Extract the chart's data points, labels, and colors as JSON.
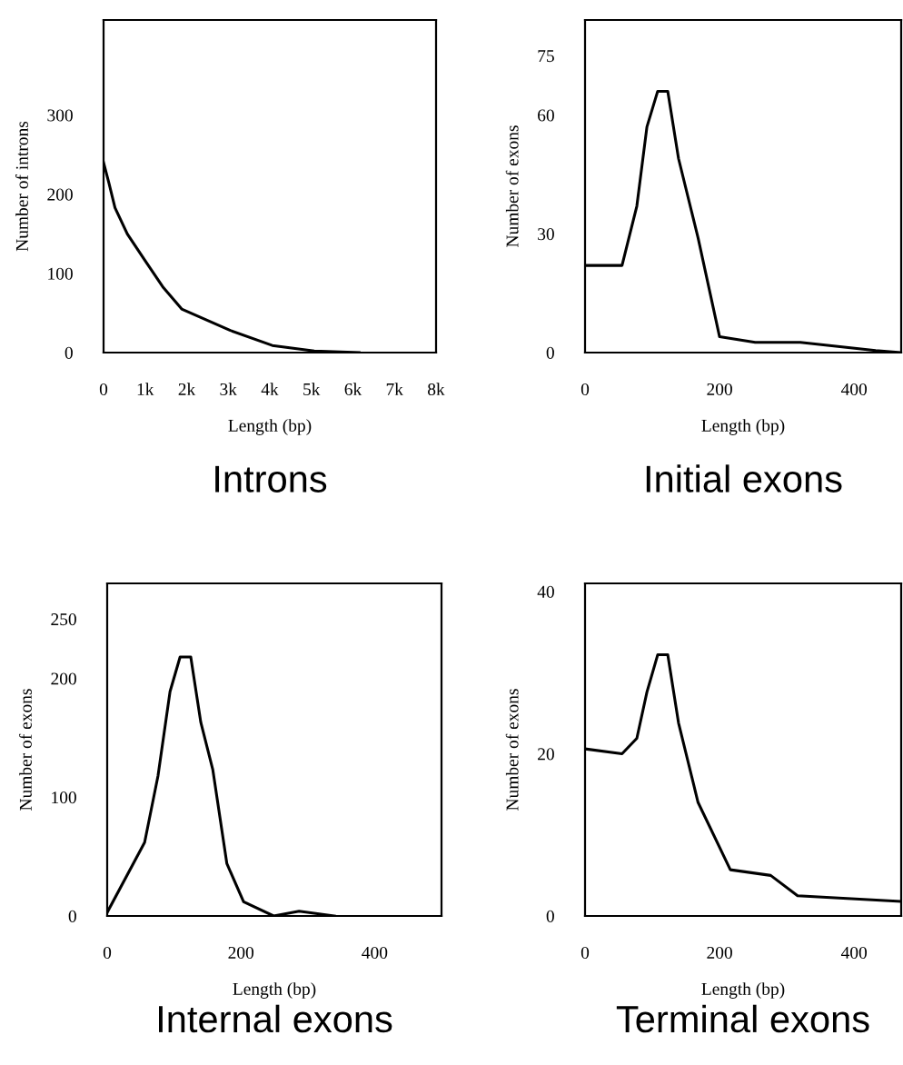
{
  "chart_data": [
    {
      "type": "line",
      "title": "Introns",
      "xlabel": "Length (bp)",
      "ylabel": "Number of introns",
      "xlim": [
        0,
        8000
      ],
      "ylim": [
        0,
        420
      ],
      "xticks": [
        0,
        {
          "value": 1000,
          "label": "1k"
        },
        {
          "value": 2000,
          "label": "2k"
        },
        {
          "value": 3000,
          "label": "3k"
        },
        {
          "value": 4000,
          "label": "4k"
        },
        {
          "value": 5000,
          "label": "5k"
        },
        {
          "value": 6000,
          "label": "6k"
        },
        {
          "value": 7000,
          "label": "7k"
        },
        {
          "value": 8000,
          "label": "8k"
        }
      ],
      "yticks": [
        0,
        100,
        200,
        300
      ],
      "grid": false,
      "marker": "none",
      "series": [
        {
          "color": "#000000",
          "x": [
            0,
            130,
            275,
            570,
            1000,
            1440,
            1880,
            3050,
            4060,
            5070,
            6150
          ],
          "values": [
            240,
            214,
            183,
            150,
            116,
            82,
            55,
            28,
            9,
            2,
            0
          ]
        }
      ]
    },
    {
      "type": "line",
      "title": "Initial exons",
      "xlabel": "Length (bp)",
      "ylabel": "Number of exons",
      "xlim": [
        0,
        470
      ],
      "ylim": [
        0,
        84
      ],
      "xticks": [
        0,
        200,
        400
      ],
      "yticks": [
        0,
        30,
        60,
        75
      ],
      "grid": false,
      "marker": "none",
      "series": [
        {
          "color": "#000000",
          "x": [
            0,
            55,
            77,
            92,
            108,
            123,
            139,
            168,
            200,
            253,
            320,
            432,
            468
          ],
          "values": [
            22,
            22,
            37,
            57,
            66,
            66,
            49,
            29,
            4,
            2.6,
            2.6,
            0.5,
            0
          ]
        }
      ]
    },
    {
      "type": "line",
      "title": "Internal exons",
      "xlabel": "Length (bp)",
      "ylabel": "Number of exons",
      "xlim": [
        0,
        500
      ],
      "ylim": [
        0,
        280
      ],
      "xticks": [
        0,
        200,
        400
      ],
      "yticks": [
        0,
        100,
        200,
        250
      ],
      "grid": false,
      "marker": "none",
      "series": [
        {
          "color": "#000000",
          "x": [
            0,
            56,
            76,
            94,
            109,
            125,
            140,
            158,
            179,
            204,
            249,
            287,
            340
          ],
          "values": [
            3,
            62,
            118,
            189,
            218,
            218,
            163,
            123,
            44,
            12,
            0,
            4,
            0
          ]
        }
      ]
    },
    {
      "type": "line",
      "title": "Terminal exons",
      "xlabel": "Length (bp)",
      "ylabel": "Number of exons",
      "xlim": [
        0,
        470
      ],
      "ylim": [
        0,
        41
      ],
      "xticks": [
        0,
        200,
        400
      ],
      "yticks": [
        0,
        20,
        40
      ],
      "grid": false,
      "marker": "none",
      "series": [
        {
          "color": "#000000",
          "x": [
            0,
            55,
            77,
            92,
            108,
            123,
            139,
            168,
            216,
            276,
            316,
            468
          ],
          "values": [
            20.6,
            20.0,
            21.9,
            27.6,
            32.2,
            32.2,
            23.8,
            14,
            5.7,
            5,
            2.5,
            1.8
          ]
        }
      ]
    }
  ]
}
